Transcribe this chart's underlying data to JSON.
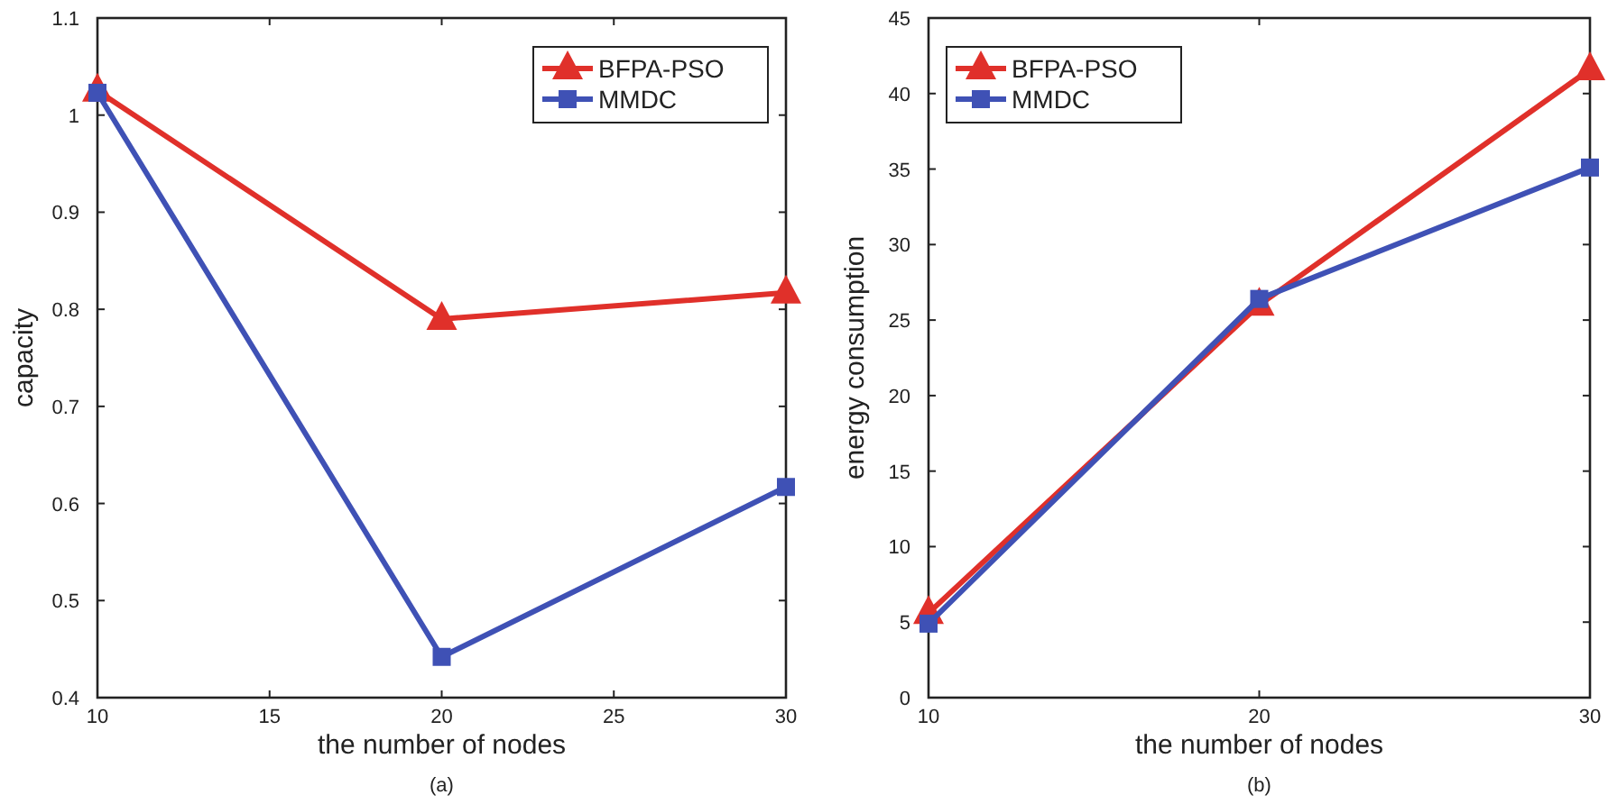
{
  "chart_data": [
    {
      "type": "line",
      "xlabel": "the number of nodes",
      "ylabel": "capacity",
      "annotations": [
        "(a)"
      ],
      "x": [
        10,
        20,
        30
      ],
      "xlim": [
        10,
        30
      ],
      "xticks": [
        10,
        15,
        20,
        25,
        30
      ],
      "ylim": [
        0.4,
        1.1
      ],
      "yticks": [
        0.4,
        0.5,
        0.6,
        0.7,
        0.8,
        0.9,
        1,
        1.1
      ],
      "grid": false,
      "legend": "top right",
      "series": [
        {
          "name": "BFPA-PSO",
          "color": "#e0302a",
          "marker": "triangle",
          "values": [
            1.025,
            0.79,
            0.817
          ]
        },
        {
          "name": "MMDC",
          "color": "#3f51b5",
          "marker": "square",
          "values": [
            1.023,
            0.442,
            0.617
          ]
        }
      ]
    },
    {
      "type": "line",
      "xlabel": "the number of nodes",
      "ylabel": "energy consumption",
      "annotations": [
        "(b)"
      ],
      "x": [
        10,
        20,
        30
      ],
      "xlim": [
        10,
        30
      ],
      "xticks": [
        10,
        20,
        30
      ],
      "ylim": [
        0,
        45
      ],
      "yticks": [
        0,
        5,
        10,
        15,
        20,
        25,
        30,
        35,
        40,
        45
      ],
      "grid": false,
      "legend": "top left",
      "series": [
        {
          "name": "BFPA-PSO",
          "color": "#e0302a",
          "marker": "triangle",
          "values": [
            5.6,
            26.0,
            41.6
          ]
        },
        {
          "name": "MMDC",
          "color": "#3f51b5",
          "marker": "square",
          "values": [
            4.9,
            26.4,
            35.1
          ]
        }
      ]
    }
  ]
}
